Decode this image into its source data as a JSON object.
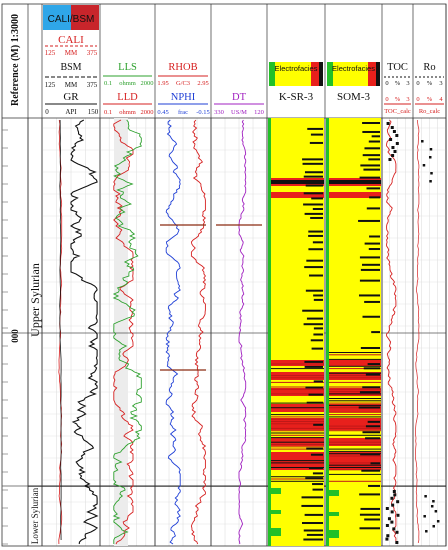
{
  "chart_data": {
    "type": "line",
    "depth_label": "Reference (M) 1:3000",
    "depth_tick": "000",
    "zones": [
      {
        "name": "Upper Sylurian",
        "from": 0.0,
        "to": 0.86
      },
      {
        "name": "Lower Sylurian",
        "from": 0.86,
        "to": 1.0
      }
    ],
    "tracks": [
      {
        "id": "gr",
        "curves": [
          {
            "name": "CALI",
            "min": "125",
            "unit": "MM",
            "max": "375",
            "color": "#d62020"
          },
          {
            "name": "BSM",
            "min": "125",
            "unit": "MM",
            "max": "375",
            "color": "#111111"
          },
          {
            "name": "GR",
            "min": "0",
            "unit": "API",
            "max": "150",
            "color": "#111111"
          }
        ],
        "legend": "CALI/BSM"
      },
      {
        "id": "res",
        "curves": [
          {
            "name": "LLS",
            "min": "0.1",
            "unit": "ohmm",
            "max": "2000",
            "color": "#2ca02c"
          },
          {
            "name": "LLD",
            "min": "0.1",
            "unit": "ohmm",
            "max": "2000",
            "color": "#d62020"
          }
        ]
      },
      {
        "id": "den",
        "curves": [
          {
            "name": "RHOB",
            "min": "1.95",
            "unit": "G/C3",
            "max": "2.95",
            "color": "#d62020"
          },
          {
            "name": "NPHI",
            "min": "0.45",
            "unit": "frac",
            "max": "-0.15",
            "color": "#1f3fd6"
          }
        ]
      },
      {
        "id": "dt",
        "curves": [
          {
            "name": "DT",
            "min": "330",
            "unit": "US/M",
            "max": "120",
            "color": "#a020c0"
          }
        ]
      },
      {
        "id": "ksr",
        "curves": [
          {
            "name": "K-SR-3"
          }
        ],
        "legend": "Electrofacies"
      },
      {
        "id": "som",
        "curves": [
          {
            "name": "SOM-3"
          }
        ],
        "legend": "Electrofacies"
      },
      {
        "id": "toc",
        "curves": [
          {
            "name": "TOC",
            "min": "0",
            "unit": "%",
            "max": "3",
            "color": "#111111"
          },
          {
            "name": "TOC_calc",
            "min": "0",
            "unit": "%",
            "max": "3",
            "color": "#d62020"
          }
        ]
      },
      {
        "id": "ro",
        "curves": [
          {
            "name": "Ro",
            "min": "0",
            "unit": "%",
            "max": "3",
            "color": "#111111"
          },
          {
            "name": "Ro_calc",
            "min": "0",
            "unit": "%",
            "max": "4",
            "color": "#d62020"
          }
        ]
      }
    ],
    "facies_colors": {
      "yellow": "#ffff00",
      "red": "#e8201c",
      "black": "#111111",
      "green": "#22c028"
    }
  }
}
